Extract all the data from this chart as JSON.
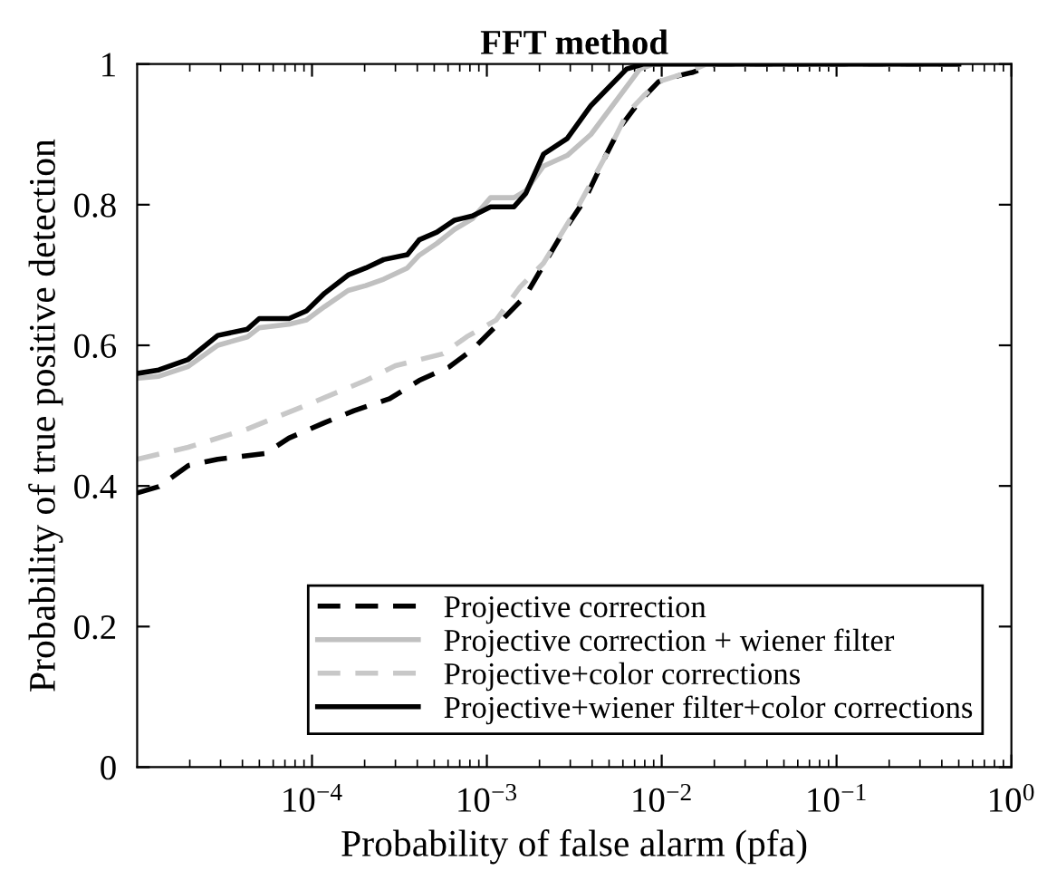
{
  "chart_data": {
    "type": "line",
    "title": "FFT method",
    "xlabel": "Probability of false alarm (pfa)",
    "ylabel": "Probability of true positive detection",
    "log": "x",
    "grid": false,
    "legend": "bottom right",
    "marker": "none",
    "xlim": [
      1e-05,
      1
    ],
    "xticks": [
      {
        "value": 0.0001,
        "label": "10$^{−4}$"
      },
      {
        "value": 0.001,
        "label": "10$^{−3}$"
      },
      {
        "value": 0.01,
        "label": "10$^{−2}$"
      },
      {
        "value": 0.1,
        "label": "10$^{−1}$"
      },
      {
        "value": 1,
        "label": "10$^{0}$"
      }
    ],
    "ylim": [
      0,
      1
    ],
    "yticks": [
      0,
      0.2,
      0.4,
      0.6,
      0.8,
      1
    ],
    "series": [
      {
        "name": "Projective correction",
        "color": "#000000",
        "line_style": "dashed",
        "x": [
          1e-05,
          1.33e-05,
          1.96e-05,
          2.89e-05,
          5.4e-05,
          7.38e-05,
          0.000118,
          0.000174,
          0.000278,
          0.00041,
          0.000607,
          0.000827,
          0.00122,
          0.00166,
          0.00265,
          0.00365,
          0.00475,
          0.00582,
          0.00736,
          0.0096,
          0.0127,
          0.0149,
          0.0203,
          0.5
        ],
        "values": [
          0.39,
          0.399,
          0.429,
          0.438,
          0.446,
          0.468,
          0.49,
          0.507,
          0.524,
          0.55,
          0.569,
          0.594,
          0.636,
          0.67,
          0.756,
          0.808,
          0.868,
          0.911,
          0.945,
          0.975,
          0.984,
          0.988,
          1.0,
          1.0
        ]
      },
      {
        "name": "Projective correction + wiener filter",
        "color": "#c0c0c0",
        "line_style": "solid",
        "x": [
          1e-05,
          1.33e-05,
          1.96e-05,
          2.89e-05,
          4.27e-05,
          4.99e-05,
          7.38e-05,
          9.3e-05,
          0.000118,
          0.000161,
          0.000203,
          0.000257,
          0.000351,
          0.00041,
          0.000518,
          0.000654,
          0.000827,
          0.00105,
          0.00143,
          0.00167,
          0.00211,
          0.00288,
          0.00394,
          0.0052,
          0.0075,
          0.009,
          0.5
        ],
        "values": [
          0.553,
          0.556,
          0.57,
          0.6,
          0.612,
          0.625,
          0.63,
          0.636,
          0.655,
          0.678,
          0.685,
          0.694,
          0.71,
          0.728,
          0.745,
          0.765,
          0.78,
          0.81,
          0.81,
          0.82,
          0.855,
          0.87,
          0.9,
          0.94,
          0.993,
          1.0,
          1.0
        ]
      },
      {
        "name": "Projective+color corrections",
        "color": "#c8c8c8",
        "line_style": "dashed",
        "x": [
          1e-05,
          1.96e-05,
          4.27e-05,
          9.3e-05,
          0.000203,
          0.0003,
          0.000561,
          0.000766,
          0.00113,
          0.00155,
          0.00211,
          0.00337,
          0.00497,
          0.0063,
          0.0079,
          0.0096,
          0.0136,
          0.018,
          0.5
        ],
        "values": [
          0.438,
          0.455,
          0.481,
          0.515,
          0.55,
          0.571,
          0.588,
          0.612,
          0.636,
          0.683,
          0.717,
          0.8,
          0.877,
          0.929,
          0.955,
          0.975,
          0.987,
          1.0,
          1.0
        ]
      },
      {
        "name": "Projective+wiener filter+color corrections",
        "color": "#000000",
        "line_style": "solid",
        "x": [
          1e-05,
          1.33e-05,
          1.96e-05,
          2.89e-05,
          4.27e-05,
          4.99e-05,
          7.38e-05,
          9.3e-05,
          0.000118,
          0.000161,
          0.000203,
          0.000257,
          0.000351,
          0.00041,
          0.000518,
          0.000654,
          0.000827,
          0.00105,
          0.00143,
          0.00167,
          0.00211,
          0.00288,
          0.00394,
          0.0063,
          0.0079,
          0.5
        ],
        "values": [
          0.56,
          0.565,
          0.58,
          0.614,
          0.623,
          0.638,
          0.638,
          0.649,
          0.674,
          0.7,
          0.71,
          0.722,
          0.729,
          0.75,
          0.761,
          0.778,
          0.784,
          0.797,
          0.797,
          0.816,
          0.872,
          0.894,
          0.941,
          0.993,
          1.0,
          1.0
        ]
      }
    ]
  }
}
